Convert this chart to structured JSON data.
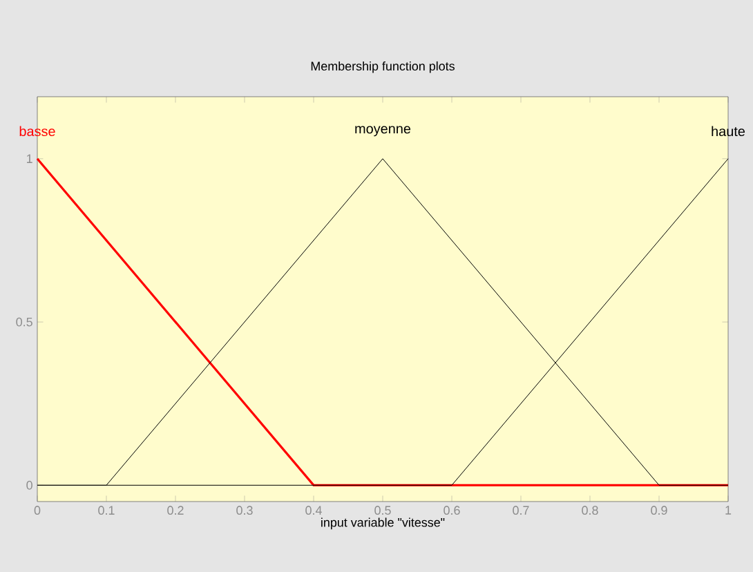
{
  "chart_data": {
    "type": "line",
    "title": "Membership function plots",
    "xlabel": "input variable \"vitesse\"",
    "xlim": [
      0,
      1
    ],
    "ylim": [
      -0.05,
      1.19
    ],
    "xticks": [
      0,
      0.1,
      0.2,
      0.3,
      0.4,
      0.5,
      0.6,
      0.7,
      0.8,
      0.9,
      1
    ],
    "yticks": [
      0,
      0.5,
      1
    ],
    "series": [
      {
        "name": "basse",
        "color": "#ff0000",
        "x": [
          0,
          0.4,
          1
        ],
        "values": [
          1,
          0,
          0
        ]
      },
      {
        "name": "moyenne",
        "color": "#000000",
        "x": [
          0,
          0.1,
          0.5,
          0.9,
          1
        ],
        "values": [
          0,
          0,
          1,
          0,
          0
        ]
      },
      {
        "name": "haute",
        "color": "#000000",
        "x": [
          0,
          0.6,
          1
        ],
        "values": [
          0,
          0,
          1
        ]
      }
    ]
  }
}
